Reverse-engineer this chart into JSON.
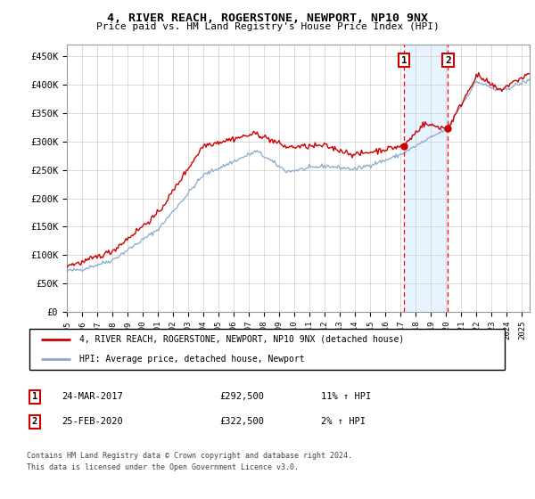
{
  "title": "4, RIVER REACH, ROGERSTONE, NEWPORT, NP10 9NX",
  "subtitle": "Price paid vs. HM Land Registry's House Price Index (HPI)",
  "ylim": [
    0,
    470000
  ],
  "yticks": [
    0,
    50000,
    100000,
    150000,
    200000,
    250000,
    300000,
    350000,
    400000,
    450000
  ],
  "ytick_labels": [
    "£0",
    "£50K",
    "£100K",
    "£150K",
    "£200K",
    "£250K",
    "£300K",
    "£350K",
    "£400K",
    "£450K"
  ],
  "marker1_year": 2017.22,
  "marker1_value": 292500,
  "marker2_year": 2020.12,
  "marker2_value": 322500,
  "line1_color": "#cc0000",
  "line2_color": "#88aacc",
  "shade_color": "#ddeeff",
  "grid_color": "#cccccc",
  "legend1_label": "4, RIVER REACH, ROGERSTONE, NEWPORT, NP10 9NX (detached house)",
  "legend2_label": "HPI: Average price, detached house, Newport",
  "table_row1_label": "1",
  "table_row1_date": "24-MAR-2017",
  "table_row1_price": "£292,500",
  "table_row1_pct": "11% ↑ HPI",
  "table_row2_label": "2",
  "table_row2_date": "25-FEB-2020",
  "table_row2_price": "£322,500",
  "table_row2_pct": "2% ↑ HPI",
  "footer_line1": "Contains HM Land Registry data © Crown copyright and database right 2024.",
  "footer_line2": "This data is licensed under the Open Government Licence v3.0."
}
